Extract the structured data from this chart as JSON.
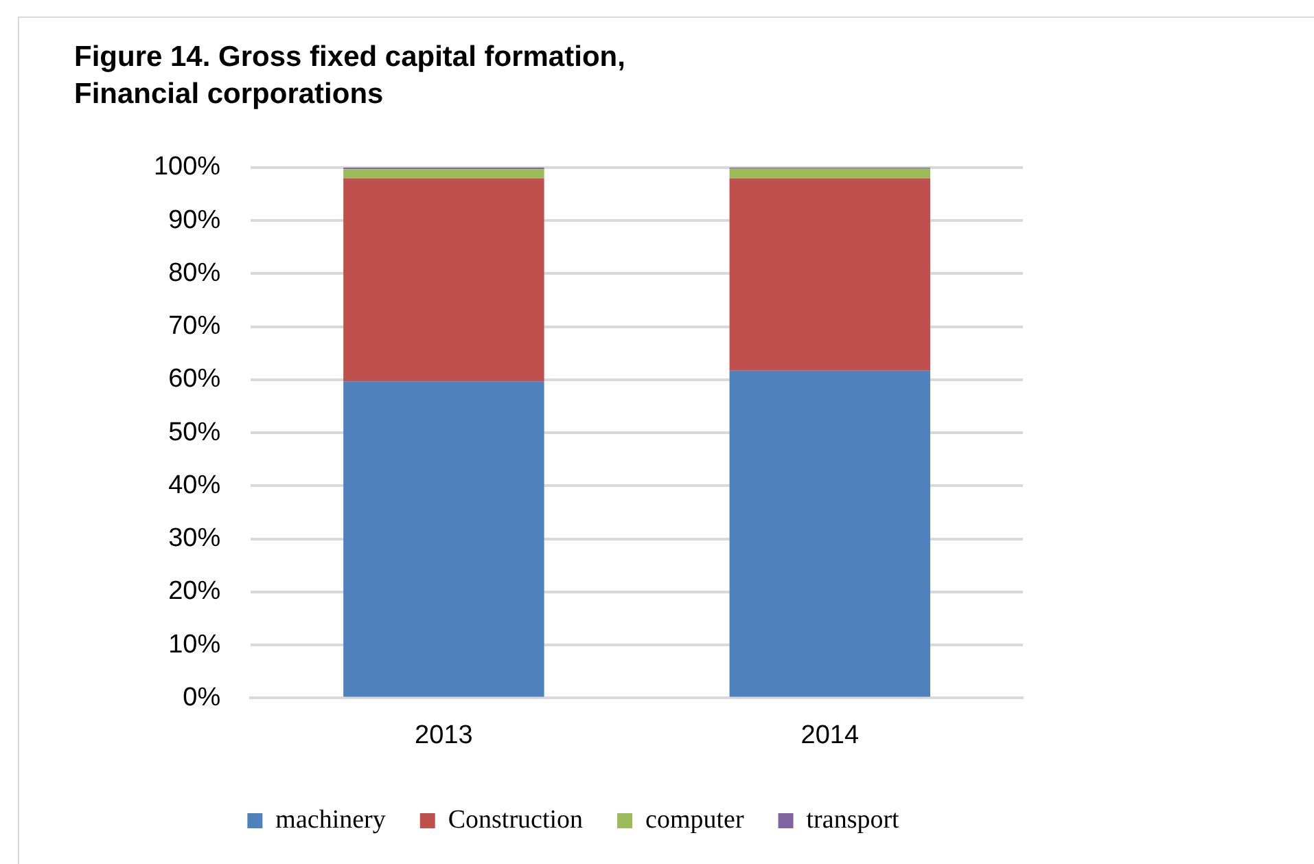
{
  "chart_data": {
    "type": "bar",
    "title": "Figure 14. Gross fixed capital formation,\nFinancial corporations",
    "categories": [
      "2013",
      "2014"
    ],
    "stacked": true,
    "series": [
      {
        "name": "machinery",
        "color": "#4f81bd",
        "values": [
          59.7,
          61.7
        ]
      },
      {
        "name": "Construction",
        "color": "#c0504d",
        "values": [
          38.3,
          36.3
        ]
      },
      {
        "name": "computer",
        "color": "#9bbb59",
        "values": [
          1.7,
          1.8
        ]
      },
      {
        "name": "transport",
        "color": "#8064a2",
        "values": [
          0.3,
          0.2
        ]
      }
    ],
    "ylim": [
      0,
      100
    ],
    "yticks": [
      {
        "value": 0,
        "label": "0%"
      },
      {
        "value": 10,
        "label": "10%"
      },
      {
        "value": 20,
        "label": "20%"
      },
      {
        "value": 30,
        "label": "30%"
      },
      {
        "value": 40,
        "label": "40%"
      },
      {
        "value": 50,
        "label": "50%"
      },
      {
        "value": 60,
        "label": "60%"
      },
      {
        "value": 70,
        "label": "70%"
      },
      {
        "value": 80,
        "label": "80%"
      },
      {
        "value": 90,
        "label": "90%"
      },
      {
        "value": 100,
        "label": "100%"
      }
    ],
    "grid": "y",
    "legend": "bottom"
  }
}
